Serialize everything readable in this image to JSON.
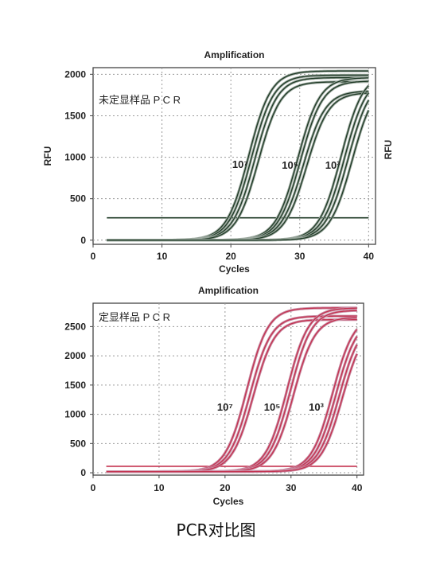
{
  "caption": "PCR对比图",
  "chart_data": [
    {
      "type": "line",
      "title": "Amplification",
      "xlabel": "Cycles",
      "ylabel": "RFU",
      "right_ylabel": "RFU",
      "panel_label": "未定显样品 P C R",
      "xlim": [
        0,
        41
      ],
      "ylim": [
        -50,
        2080
      ],
      "x_ticks": [
        0,
        10,
        20,
        30,
        40
      ],
      "y_ticks": [
        0,
        500,
        1000,
        1500,
        2000
      ],
      "grid": true,
      "line_color": "#1f3a26",
      "outline_color": "#9aa79d",
      "threshold": {
        "y": 270,
        "x_range": [
          2,
          40
        ]
      },
      "baseline": 0,
      "series": [
        {
          "group_label": "10⁷",
          "label_at": [
            20.2,
            870
          ],
          "midpoints": [
            22.6,
            23.0,
            23.5,
            24.0
          ],
          "plateaus": [
            2040,
            1990,
            1960,
            1910
          ],
          "slope": 0.62
        },
        {
          "group_label": "10⁵",
          "label_at": [
            27.4,
            860
          ],
          "midpoints": [
            29.7,
            30.1,
            30.5,
            31.0
          ],
          "plateaus": [
            1960,
            1920,
            1800,
            1780
          ],
          "slope": 0.62
        },
        {
          "group_label": "10³",
          "label_at": [
            33.7,
            860
          ],
          "midpoints": [
            36.0,
            36.5,
            37.0,
            37.6
          ],
          "plateaus": [
            2020,
            1980,
            1950,
            1920
          ],
          "slope": 0.62
        }
      ]
    },
    {
      "type": "line",
      "title": "Amplification",
      "xlabel": "Cycles",
      "ylabel": "",
      "panel_label": "定显样品 P C R",
      "xlim": [
        0,
        41
      ],
      "ylim": [
        -40,
        2900
      ],
      "x_ticks": [
        0,
        10,
        20,
        30,
        40
      ],
      "y_ticks": [
        0,
        500,
        1000,
        1500,
        2000,
        2500
      ],
      "grid": true,
      "line_color": "#c4314f",
      "outline_color": "#c98fa6",
      "threshold": {
        "y": 110,
        "x_range": [
          2,
          40
        ]
      },
      "baseline": 20,
      "series": [
        {
          "group_label": "10⁷",
          "label_at": [
            18.8,
            1060
          ],
          "midpoints": [
            23.3,
            23.8,
            24.3
          ],
          "plateaus": [
            2820,
            2680,
            2620
          ],
          "slope": 0.62
        },
        {
          "group_label": "10⁵",
          "label_at": [
            25.9,
            1060
          ],
          "midpoints": [
            29.4,
            29.9,
            30.4
          ],
          "plateaus": [
            2820,
            2780,
            2660
          ],
          "slope": 0.62
        },
        {
          "group_label": "10³",
          "label_at": [
            32.7,
            1060
          ],
          "midpoints": [
            36.3,
            36.8,
            37.3,
            37.8
          ],
          "plateaus": [
            2700,
            2650,
            2600,
            2550
          ],
          "slope": 0.62
        }
      ]
    }
  ]
}
